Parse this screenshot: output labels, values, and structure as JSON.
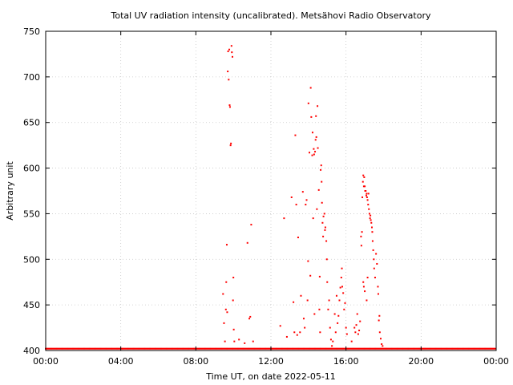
{
  "chart_data": {
    "type": "scatter",
    "title": "Total UV radiation intensity (uncalibrated). Metsähovi Radio Observatory",
    "xlabel": "Time UT, on date 2022-05-11",
    "ylabel": "Arbitrary unit",
    "xlim": [
      0,
      24
    ],
    "ylim": [
      400,
      750
    ],
    "x_ticks": [
      0,
      4,
      8,
      12,
      16,
      20,
      24
    ],
    "x_tick_labels": [
      "00:00",
      "04:00",
      "08:00",
      "12:00",
      "16:00",
      "20:00",
      "00:00"
    ],
    "y_ticks": [
      400,
      450,
      500,
      550,
      600,
      650,
      700,
      750
    ],
    "y_tick_labels": [
      "400",
      "450",
      "500",
      "550",
      "600",
      "650",
      "700",
      "750"
    ],
    "grid": true,
    "legend": "none",
    "point_color": "#ff0000",
    "baseline": 402,
    "series": [
      {
        "points": [
          [
            9.45,
            462
          ],
          [
            9.5,
            430
          ],
          [
            9.55,
            410
          ],
          [
            9.6,
            445
          ],
          [
            9.62,
            475
          ],
          [
            9.65,
            516
          ],
          [
            9.67,
            442
          ],
          [
            9.7,
            706
          ],
          [
            9.72,
            728
          ],
          [
            9.75,
            697
          ],
          [
            9.78,
            730
          ],
          [
            9.8,
            669
          ],
          [
            9.82,
            667
          ],
          [
            9.85,
            625
          ],
          [
            9.87,
            627
          ],
          [
            9.9,
            734
          ],
          [
            9.92,
            727
          ],
          [
            9.95,
            722
          ],
          [
            9.98,
            455
          ],
          [
            10.0,
            480
          ],
          [
            10.02,
            423
          ],
          [
            10.05,
            410
          ],
          [
            10.3,
            412
          ],
          [
            10.6,
            408
          ],
          [
            10.75,
            518
          ],
          [
            10.85,
            435
          ],
          [
            10.9,
            437
          ],
          [
            10.95,
            538
          ],
          [
            11.05,
            410
          ],
          [
            12.5,
            427
          ],
          [
            12.7,
            545
          ],
          [
            12.85,
            415
          ],
          [
            13.1,
            568
          ],
          [
            13.2,
            453
          ],
          [
            13.25,
            420
          ],
          [
            13.3,
            636
          ],
          [
            13.35,
            560
          ],
          [
            13.4,
            417
          ],
          [
            13.45,
            524
          ],
          [
            13.55,
            420
          ],
          [
            13.6,
            460
          ],
          [
            13.7,
            574
          ],
          [
            13.75,
            435
          ],
          [
            13.8,
            425
          ],
          [
            13.85,
            560
          ],
          [
            13.9,
            565
          ],
          [
            13.95,
            455
          ],
          [
            13.98,
            498
          ],
          [
            14.0,
            671
          ],
          [
            14.05,
            617
          ],
          [
            14.1,
            482
          ],
          [
            14.12,
            688
          ],
          [
            14.15,
            656
          ],
          [
            14.2,
            614
          ],
          [
            14.22,
            639
          ],
          [
            14.25,
            545
          ],
          [
            14.28,
            621
          ],
          [
            14.3,
            615
          ],
          [
            14.32,
            440
          ],
          [
            14.35,
            618
          ],
          [
            14.38,
            631
          ],
          [
            14.4,
            657
          ],
          [
            14.42,
            634
          ],
          [
            14.45,
            555
          ],
          [
            14.48,
            668
          ],
          [
            14.5,
            622
          ],
          [
            14.55,
            576
          ],
          [
            14.58,
            445
          ],
          [
            14.6,
            481
          ],
          [
            14.62,
            420
          ],
          [
            14.65,
            598
          ],
          [
            14.68,
            603
          ],
          [
            14.7,
            585
          ],
          [
            14.72,
            562
          ],
          [
            14.75,
            540
          ],
          [
            14.78,
            525
          ],
          [
            14.8,
            547
          ],
          [
            14.85,
            550
          ],
          [
            14.88,
            532
          ],
          [
            14.9,
            535
          ],
          [
            14.95,
            520
          ],
          [
            14.98,
            500
          ],
          [
            15.0,
            475
          ],
          [
            15.05,
            445
          ],
          [
            15.1,
            455
          ],
          [
            15.15,
            425
          ],
          [
            15.2,
            412
          ],
          [
            15.25,
            405
          ],
          [
            15.3,
            410
          ],
          [
            15.4,
            440
          ],
          [
            15.45,
            420
          ],
          [
            15.5,
            460
          ],
          [
            15.55,
            430
          ],
          [
            15.6,
            438
          ],
          [
            15.65,
            455
          ],
          [
            15.7,
            469
          ],
          [
            15.75,
            480
          ],
          [
            15.78,
            490
          ],
          [
            15.8,
            470
          ],
          [
            15.85,
            463
          ],
          [
            15.9,
            445
          ],
          [
            15.95,
            452
          ],
          [
            16.0,
            425
          ],
          [
            16.05,
            418
          ],
          [
            16.3,
            410
          ],
          [
            16.45,
            425
          ],
          [
            16.5,
            420
          ],
          [
            16.55,
            428
          ],
          [
            16.6,
            440
          ],
          [
            16.65,
            418
          ],
          [
            16.7,
            422
          ],
          [
            16.75,
            432
          ],
          [
            16.8,
            525
          ],
          [
            16.82,
            515
          ],
          [
            16.85,
            530
          ],
          [
            16.87,
            568
          ],
          [
            16.9,
            585
          ],
          [
            16.92,
            592
          ],
          [
            16.95,
            580
          ],
          [
            16.97,
            590
          ],
          [
            17.0,
            580
          ],
          [
            17.02,
            575
          ],
          [
            17.05,
            575
          ],
          [
            17.08,
            570
          ],
          [
            17.1,
            572
          ],
          [
            17.12,
            568
          ],
          [
            17.15,
            565
          ],
          [
            17.18,
            560
          ],
          [
            17.2,
            572
          ],
          [
            17.22,
            555
          ],
          [
            17.25,
            550
          ],
          [
            17.28,
            545
          ],
          [
            17.3,
            548
          ],
          [
            17.32,
            543
          ],
          [
            17.35,
            540
          ],
          [
            17.38,
            535
          ],
          [
            17.4,
            530
          ],
          [
            17.42,
            520
          ],
          [
            17.45,
            510
          ],
          [
            17.48,
            500
          ],
          [
            17.5,
            490
          ],
          [
            17.55,
            480
          ],
          [
            17.6,
            506
          ],
          [
            17.65,
            495
          ],
          [
            17.7,
            470
          ],
          [
            17.72,
            462
          ],
          [
            17.75,
            433
          ],
          [
            17.78,
            438
          ],
          [
            17.8,
            420
          ],
          [
            17.85,
            413
          ],
          [
            17.9,
            407
          ],
          [
            17.95,
            405
          ],
          [
            17.0,
            465
          ],
          [
            17.1,
            455
          ],
          [
            17.15,
            480
          ],
          [
            16.95,
            470
          ],
          [
            16.92,
            475
          ]
        ]
      }
    ]
  }
}
